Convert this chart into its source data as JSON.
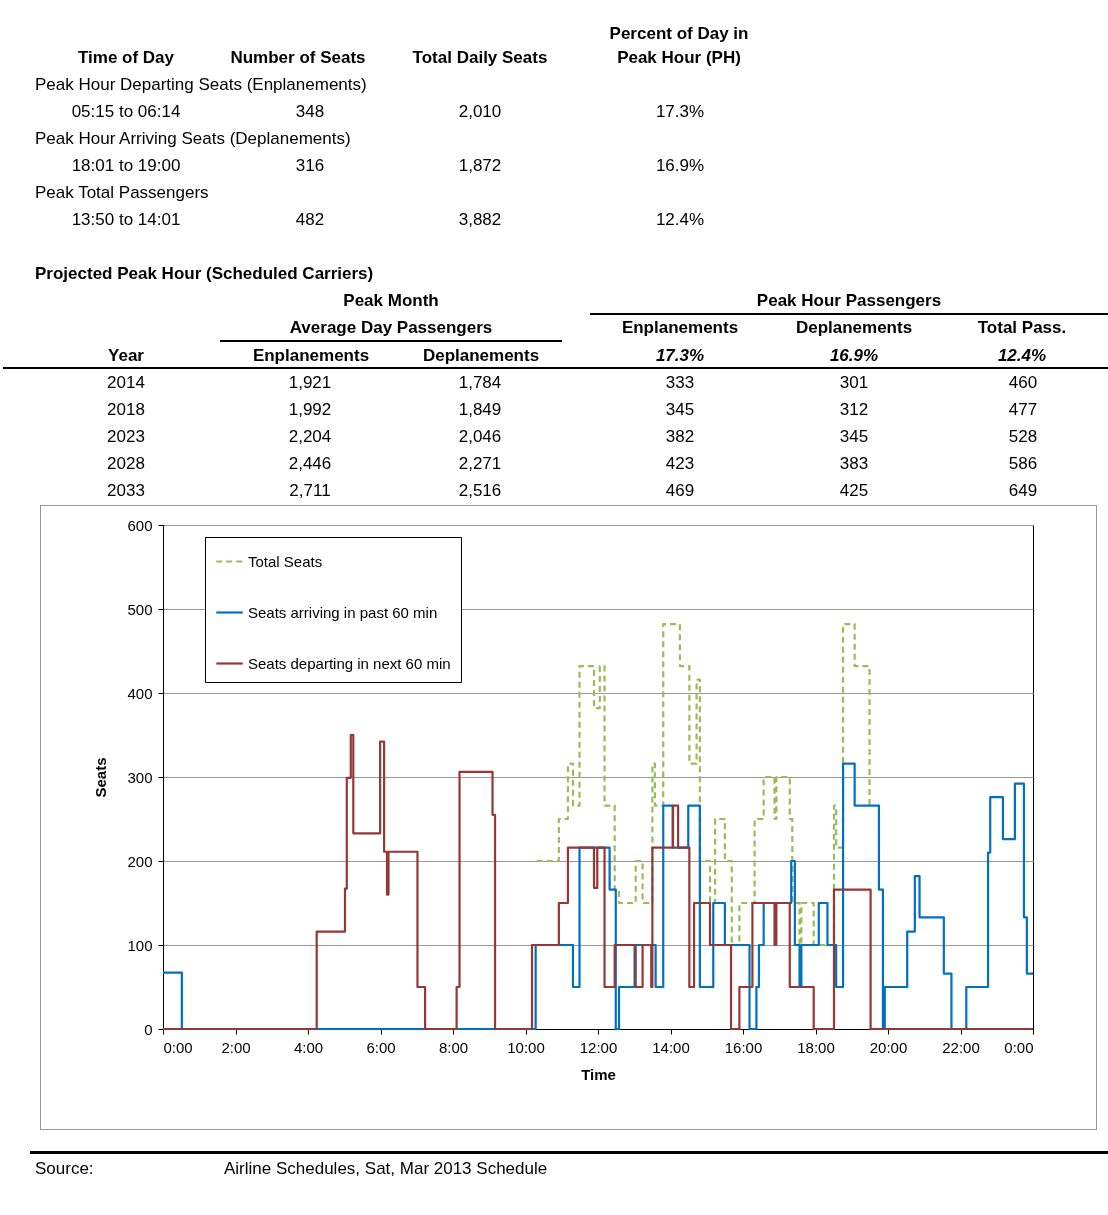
{
  "chart_data": {
    "type": "step",
    "xlabel": "Time",
    "ylabel": "Seats",
    "legend": "top left",
    "grid": "y",
    "marker": "none",
    "xlim": [
      0,
      24
    ],
    "ylim": [
      0,
      600
    ],
    "xticks": [
      {
        "value": 0,
        "label": "0:00"
      },
      {
        "value": 2,
        "label": "2:00"
      },
      {
        "value": 4,
        "label": "4:00"
      },
      {
        "value": 6,
        "label": "6:00"
      },
      {
        "value": 8,
        "label": "8:00"
      },
      {
        "value": 10,
        "label": "10:00"
      },
      {
        "value": 12,
        "label": "12:00"
      },
      {
        "value": 14,
        "label": "14:00"
      },
      {
        "value": 16,
        "label": "16:00"
      },
      {
        "value": 18,
        "label": "18:00"
      },
      {
        "value": 20,
        "label": "20:00"
      },
      {
        "value": 22,
        "label": "22:00"
      },
      {
        "value": 24,
        "label": "0:00"
      }
    ],
    "yticks": [
      0,
      100,
      200,
      300,
      400,
      500,
      600
    ],
    "series": [
      {
        "name": "Total Seats",
        "color": "#9bbb59",
        "line_style": "dashed",
        "x": [
          10.31,
          10.92,
          11.17,
          11.31,
          11.49,
          11.89,
          12.05,
          12.18,
          12.46,
          12.58,
          13.04,
          13.23,
          13.5,
          13.57,
          13.8,
          14.26,
          14.52,
          14.72,
          14.81,
          15.09,
          15.23,
          15.5,
          15.69,
          15.9,
          16.32,
          16.57,
          16.87,
          16.92,
          17.29,
          17.36,
          17.56,
          17.61,
          17.95,
          18.51,
          18.57,
          18.76,
          19.08,
          19.49
        ],
        "values": [
          200,
          250,
          316,
          266,
          432,
          382,
          432,
          266,
          166,
          150,
          200,
          150,
          316,
          266,
          482,
          432,
          316,
          416,
          200,
          150,
          250,
          200,
          100,
          150,
          250,
          300,
          250,
          300,
          250,
          150,
          100,
          150,
          100,
          266,
          216,
          482,
          432,
          266
        ]
      },
      {
        "name": "Seats arriving in past 60 min",
        "color": "#0070c0",
        "line_style": "solid",
        "x": [
          0,
          0.52,
          10.28,
          11.31,
          11.49,
          12.32,
          12.49,
          12.58,
          13.01,
          13.59,
          13.8,
          14.06,
          14.49,
          14.81,
          15.18,
          15.5,
          16.18,
          16.37,
          16.44,
          16.57,
          17.33,
          17.43,
          17.56,
          17.61,
          18.09,
          18.33,
          18.57,
          18.76,
          19.08,
          19.75,
          19.86,
          19.91,
          20.53,
          20.74,
          20.87,
          21.54,
          21.75,
          22.16,
          22.76,
          22.82,
          23.17,
          23.5,
          23.75,
          23.83,
          24
        ],
        "values": [
          67,
          0,
          100,
          50,
          216,
          166,
          0,
          50,
          100,
          50,
          266,
          216,
          266,
          50,
          150,
          100,
          0,
          50,
          100,
          150,
          200,
          100,
          50,
          100,
          150,
          100,
          50,
          316,
          266,
          166,
          0,
          50,
          116,
          182,
          133,
          66,
          0,
          50,
          210,
          276,
          226,
          292,
          133,
          66,
          66
        ]
      },
      {
        "name": "Seats departing in next 60 min",
        "color": "#953735",
        "line_style": "solid",
        "x": [
          0,
          4.24,
          5.02,
          5.07,
          5.18,
          5.25,
          5.99,
          6.1,
          6.18,
          6.22,
          7.02,
          7.23,
          8.1,
          8.18,
          9.09,
          9.16,
          10.18,
          10.92,
          11.17,
          11.89,
          11.98,
          12.18,
          12.46,
          13.04,
          13.23,
          13.47,
          13.5,
          14.07,
          14.21,
          14.52,
          14.65,
          15.09,
          15.67,
          15.9,
          16.26,
          16.87,
          16.92,
          17.29,
          17.95,
          18.51,
          19.52,
          24
        ],
        "values": [
          0,
          116,
          167,
          299,
          350,
          233,
          342,
          211,
          160,
          211,
          50,
          0,
          50,
          306,
          255,
          0,
          100,
          150,
          216,
          168,
          216,
          50,
          100,
          50,
          100,
          50,
          216,
          266,
          216,
          50,
          150,
          100,
          0,
          50,
          150,
          100,
          150,
          50,
          0,
          166,
          0,
          0
        ]
      }
    ],
    "annotations": [
      "Time of Day",
      "Number of Seats",
      "Total Daily Seats",
      "Percent of Day in",
      "Peak Hour (PH)",
      "Peak Hour Departing Seats (Enplanements)",
      "05:15 to 06:14",
      "348",
      "2,010",
      "17.3%",
      "Peak Hour Arriving Seats (Deplanements)",
      "18:01 to 19:00",
      "316",
      "1,872",
      "16.9%",
      "Peak Total Passengers",
      "13:50 to 14:01",
      "482",
      "3,882",
      "12.4%",
      "Projected Peak Hour (Scheduled Carriers)",
      "Peak Month",
      "Peak Hour Passengers",
      "Average Day Passengers",
      "Enplanements",
      "Deplanements",
      "Total Pass.",
      "Year",
      "Enplanements",
      "Deplanements",
      "17.3%",
      "16.9%",
      "12.4%",
      "2014",
      "1,921",
      "1,784",
      "333",
      "301",
      "460",
      "2018",
      "1,992",
      "1,849",
      "345",
      "312",
      "477",
      "2023",
      "2,204",
      "2,046",
      "382",
      "345",
      "528",
      "2028",
      "2,446",
      "2,271",
      "423",
      "383",
      "586",
      "2033",
      "2,711",
      "2,516",
      "469",
      "425",
      "649",
      "Source:",
      "Airline Schedules, Sat, Mar 2013 Schedule"
    ]
  }
}
